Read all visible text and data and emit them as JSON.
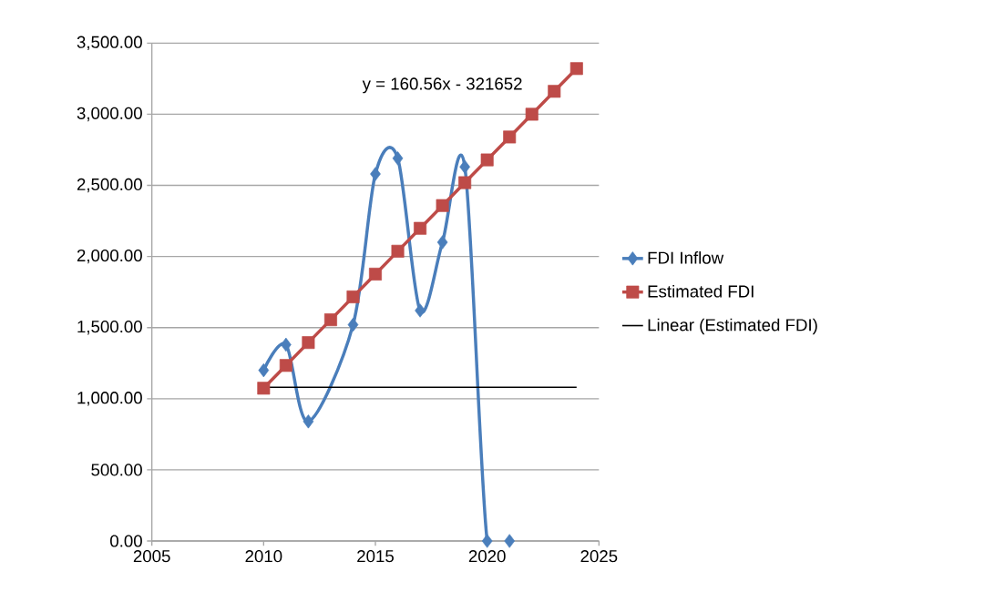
{
  "chart_data": {
    "type": "line",
    "xlim": [
      2005,
      2025
    ],
    "ylim": [
      0,
      3500
    ],
    "xticks": [
      2005,
      2010,
      2015,
      2020,
      2025
    ],
    "yticks": [
      {
        "value": 0,
        "label": "0.00"
      },
      {
        "value": 500,
        "label": "500.00"
      },
      {
        "value": 1000,
        "label": "1,000.00"
      },
      {
        "value": 1500,
        "label": "1,500.00"
      },
      {
        "value": 2000,
        "label": "2,000.00"
      },
      {
        "value": 2500,
        "label": "2,500.00"
      },
      {
        "value": 3000,
        "label": "3,000.00"
      },
      {
        "value": 3500,
        "label": "3,500.00"
      }
    ],
    "grid": "y",
    "legend": "right",
    "annotations": [
      "y = 160.56x - 321652"
    ],
    "series": [
      {
        "name": "FDI Inflow",
        "color": "#4a7ebb",
        "marker": "diamond",
        "x": [
          2010,
          2011,
          2012,
          2013,
          2014,
          2015,
          2016,
          2017,
          2018,
          2019,
          2020,
          2021
        ],
        "values": [
          1200,
          1380,
          840,
          null,
          1520,
          2580,
          2690,
          1620,
          2100,
          2630,
          0,
          0
        ]
      },
      {
        "name": "Estimated FDI",
        "color": "#be4b48",
        "marker": "square",
        "x": [
          2010,
          2011,
          2012,
          2013,
          2014,
          2015,
          2016,
          2017,
          2018,
          2019,
          2020,
          2021,
          2022,
          2023,
          2024
        ],
        "values": [
          1074,
          1234,
          1395,
          1555,
          1716,
          1876,
          2037,
          2198,
          2358,
          2519,
          2679,
          2840,
          3000,
          3161,
          3321
        ]
      },
      {
        "name": "Linear (Estimated FDI)",
        "color": "#000000",
        "marker": "none",
        "x": [
          2010,
          2024
        ],
        "values": [
          1080,
          1080
        ]
      }
    ]
  }
}
